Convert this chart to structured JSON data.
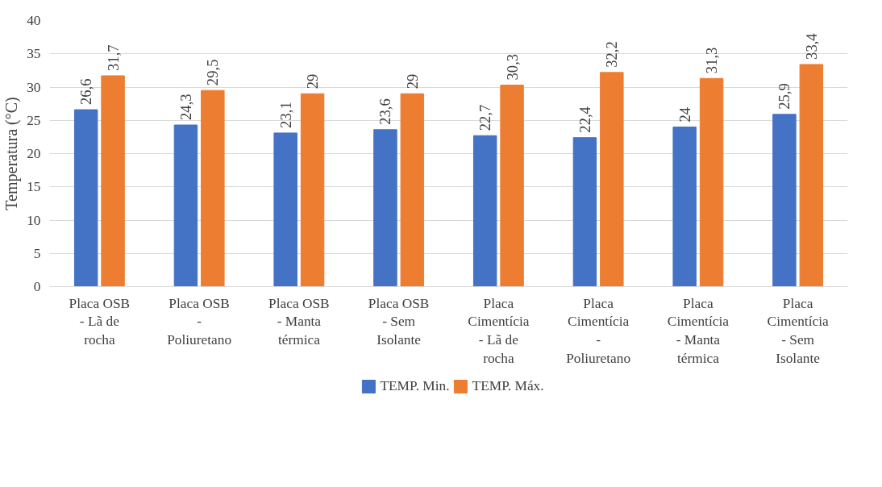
{
  "chart_data": {
    "type": "bar",
    "ylabel": "Temperatura (°C)",
    "categories": [
      "Placa OSB\n- Lã de\nrocha",
      "Placa OSB\n-\nPoliuretano",
      "Placa OSB\n- Manta\ntérmica",
      "Placa OSB\n- Sem\nIsolante",
      "Placa\nCimentícia\n- Lã de\nrocha",
      "Placa\nCimentícia\n-\nPoliuretano",
      "Placa\nCimentícia\n- Manta\ntérmica",
      "Placa\nCimentícia\n- Sem\nIsolante"
    ],
    "series": [
      {
        "name": "TEMP. Min.",
        "color": "#4472c4",
        "values": [
          26.6,
          24.3,
          23.1,
          23.6,
          22.7,
          22.4,
          24,
          25.9
        ],
        "value_labels": [
          "26,6",
          "24,3",
          "23,1",
          "23,6",
          "22,7",
          "22,4",
          "24",
          "25,9"
        ]
      },
      {
        "name": "TEMP. Máx.",
        "color": "#ed7d31",
        "values": [
          31.7,
          29.5,
          29,
          29,
          30.3,
          32.2,
          31.3,
          33.4
        ],
        "value_labels": [
          "31,7",
          "29,5",
          "29",
          "29",
          "30,3",
          "32,2",
          "31,3",
          "33,4"
        ]
      }
    ],
    "ylim": [
      0,
      40
    ],
    "yticks": [
      0,
      5,
      10,
      15,
      20,
      25,
      30,
      35,
      40
    ],
    "grid": "y",
    "legend": "bottom"
  }
}
